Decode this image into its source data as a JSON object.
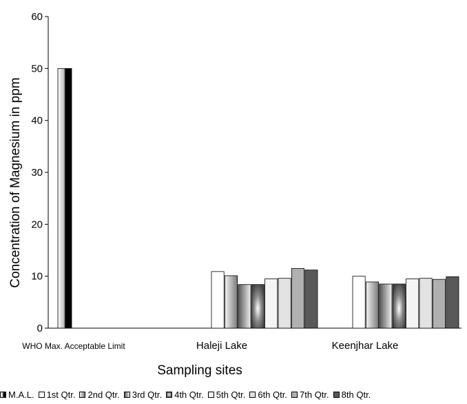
{
  "chart_data": {
    "type": "bar",
    "title": "",
    "xlabel": "Sampling sites",
    "ylabel": "Concentration of Magnesium in ppm",
    "ylim": [
      0,
      60
    ],
    "yticks": [
      "0",
      "10",
      "20",
      "30",
      "40",
      "50",
      "60"
    ],
    "grid": false,
    "legend_position": "bottom",
    "categories": [
      "WHO Max. Acceptable Limit",
      "Haleji Lake",
      "Keenjhar Lake"
    ],
    "series": [
      {
        "name": "M.A.L.",
        "values": [
          50,
          null,
          null
        ]
      },
      {
        "name": "1st Qtr.",
        "values": [
          null,
          10.9,
          10.0
        ]
      },
      {
        "name": "2nd Qtr.",
        "values": [
          null,
          10.1,
          8.9
        ]
      },
      {
        "name": "3rd Qtr.",
        "values": [
          null,
          8.4,
          8.5
        ]
      },
      {
        "name": "4th Qtr.",
        "values": [
          null,
          8.4,
          8.5
        ]
      },
      {
        "name": "5th Qtr.",
        "values": [
          null,
          9.5,
          9.5
        ]
      },
      {
        "name": "6th Qtr.",
        "values": [
          null,
          9.6,
          9.6
        ]
      },
      {
        "name": "7th Qtr.",
        "values": [
          null,
          11.5,
          9.4
        ]
      },
      {
        "name": "8th Qtr.",
        "values": [
          null,
          11.2,
          9.9
        ]
      }
    ]
  }
}
